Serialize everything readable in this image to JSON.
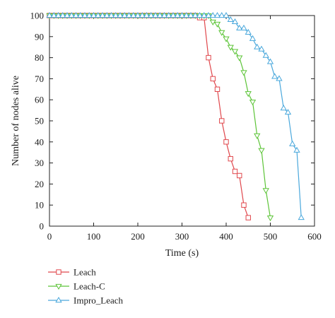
{
  "chart_data": {
    "type": "line",
    "title": "",
    "xlabel": "Time (s)",
    "ylabel": "Number of nodes alive",
    "xlim": [
      0,
      600
    ],
    "ylim": [
      0,
      100
    ],
    "xticks": [
      0,
      100,
      200,
      300,
      400,
      500,
      600
    ],
    "yticks": [
      0,
      10,
      20,
      30,
      40,
      50,
      60,
      70,
      80,
      90,
      100
    ],
    "grid": false,
    "legend_position": "bottom-left, below plot",
    "series": [
      {
        "name": "Leach",
        "color": "#e0474c",
        "marker": "square",
        "x": [
          0,
          10,
          20,
          30,
          40,
          50,
          60,
          70,
          80,
          90,
          100,
          110,
          120,
          130,
          140,
          150,
          160,
          170,
          180,
          190,
          200,
          210,
          220,
          230,
          240,
          250,
          260,
          270,
          280,
          290,
          300,
          310,
          320,
          330,
          340,
          350,
          360,
          370,
          380,
          390,
          400,
          410,
          420,
          430,
          440,
          450
        ],
        "y": [
          100,
          100,
          100,
          100,
          100,
          100,
          100,
          100,
          100,
          100,
          100,
          100,
          100,
          100,
          100,
          100,
          100,
          100,
          100,
          100,
          100,
          100,
          100,
          100,
          100,
          100,
          100,
          100,
          100,
          100,
          100,
          100,
          100,
          100,
          99,
          99,
          80,
          70,
          65,
          50,
          40,
          32,
          26,
          24,
          10,
          4
        ]
      },
      {
        "name": "Leach-C",
        "color": "#5cc437",
        "marker": "triangle-down",
        "x": [
          0,
          10,
          20,
          30,
          40,
          50,
          60,
          70,
          80,
          90,
          100,
          110,
          120,
          130,
          140,
          150,
          160,
          170,
          180,
          190,
          200,
          210,
          220,
          230,
          240,
          250,
          260,
          270,
          280,
          290,
          300,
          310,
          320,
          330,
          340,
          350,
          360,
          370,
          380,
          390,
          400,
          410,
          420,
          430,
          440,
          450,
          460,
          470,
          480,
          490,
          500
        ],
        "y": [
          100,
          100,
          100,
          100,
          100,
          100,
          100,
          100,
          100,
          100,
          100,
          100,
          100,
          100,
          100,
          100,
          100,
          100,
          100,
          100,
          100,
          100,
          100,
          100,
          100,
          100,
          100,
          100,
          100,
          100,
          100,
          100,
          100,
          100,
          100,
          100,
          100,
          97,
          96,
          92,
          89,
          85,
          83,
          80,
          73,
          63,
          59,
          43,
          36,
          17,
          4
        ]
      },
      {
        "name": "Impro_Leach",
        "color": "#4aa8dc",
        "marker": "triangle-up",
        "x": [
          0,
          10,
          20,
          30,
          40,
          50,
          60,
          70,
          80,
          90,
          100,
          110,
          120,
          130,
          140,
          150,
          160,
          170,
          180,
          190,
          200,
          210,
          220,
          230,
          240,
          250,
          260,
          270,
          280,
          290,
          300,
          310,
          320,
          330,
          340,
          350,
          360,
          370,
          380,
          390,
          400,
          410,
          420,
          430,
          440,
          450,
          460,
          470,
          480,
          490,
          500,
          510,
          520,
          530,
          540,
          550,
          560,
          570
        ],
        "y": [
          100,
          100,
          100,
          100,
          100,
          100,
          100,
          100,
          100,
          100,
          100,
          100,
          100,
          100,
          100,
          100,
          100,
          100,
          100,
          100,
          100,
          100,
          100,
          100,
          100,
          100,
          100,
          100,
          100,
          100,
          100,
          100,
          100,
          100,
          100,
          100,
          100,
          100,
          100,
          100,
          100,
          98,
          97,
          94,
          94,
          92,
          89,
          85,
          84,
          81,
          78,
          71,
          70,
          56,
          54,
          39,
          36,
          4
        ]
      }
    ]
  }
}
